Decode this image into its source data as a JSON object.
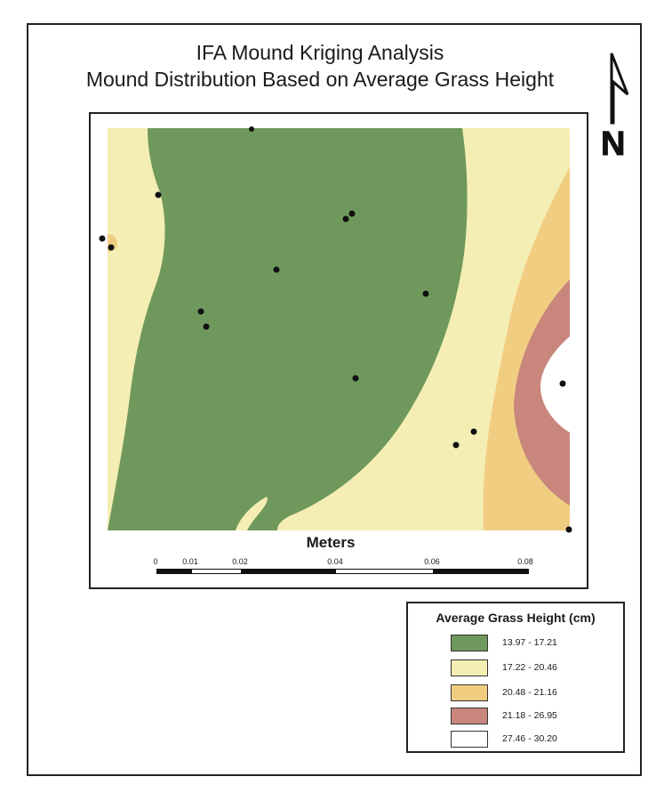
{
  "title": {
    "line1": "IFA Mound Kriging Analysis",
    "line2": "Mound Distribution Based on Average Grass Height"
  },
  "north_arrow": {
    "icon": "north-arrow-icon",
    "letter": "N"
  },
  "scale": {
    "title": "Meters",
    "ticks": [
      "0",
      "0.01",
      "0.02",
      "0.04",
      "0.06",
      "0.08"
    ]
  },
  "legend": {
    "title": "Average Grass Height (cm)",
    "items": [
      {
        "label": "13.97 - 17.21",
        "color": "#6f995c"
      },
      {
        "label": "17.22 - 20.46",
        "color": "#f5eeb4"
      },
      {
        "label": "20.48 - 21.16",
        "color": "#f1cd82"
      },
      {
        "label": "21.18 - 26.95",
        "color": "#c8867d"
      },
      {
        "label": "27.46 - 30.20",
        "color": "#ffffff"
      }
    ]
  }
}
